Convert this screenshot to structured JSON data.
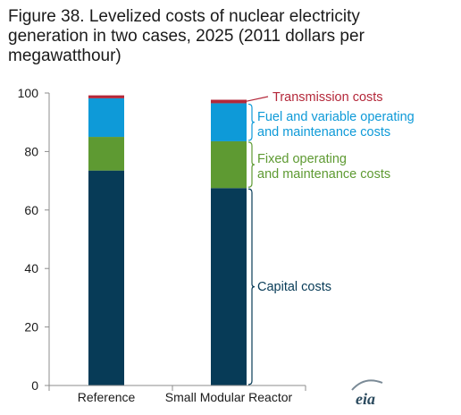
{
  "title_lines": [
    "Figure 38. Levelized costs of nuclear electricity",
    "generation in two cases, 2025 (2011 dollars per",
    "megawatthour)"
  ],
  "logo_text": "eia",
  "colors": {
    "capital": "#073b57",
    "fixed_om": "#5e9a32",
    "fuel_vom": "#0e9ad8",
    "transmission": "#b4283a",
    "axis": "#8c8c8c"
  },
  "chart_data": {
    "type": "bar",
    "stacked": true,
    "categories": [
      "Reference",
      "Small Modular Reactor"
    ],
    "series": [
      {
        "name": "Capital costs",
        "color": "#073b57",
        "values": [
          73.5,
          67.5
        ]
      },
      {
        "name": "Fixed operating and maintenance costs",
        "color": "#5e9a32",
        "values": [
          11.5,
          16.0
        ]
      },
      {
        "name": "Fuel and variable operating and maintenance costs",
        "color": "#0e9ad8",
        "values": [
          13.2,
          13.0
        ]
      },
      {
        "name": "Transmission costs",
        "color": "#b4283a",
        "values": [
          1.0,
          1.2
        ]
      }
    ],
    "yticks": [
      "0",
      "20",
      "40",
      "60",
      "80",
      "100"
    ],
    "ylim": [
      0,
      100
    ],
    "grid": false,
    "legend": "annotations right of second bar",
    "annotations": {
      "transmission": [
        "Transmission costs"
      ],
      "fuel": [
        "Fuel and variable operating",
        "and maintenance costs"
      ],
      "fixed": [
        "Fixed operating",
        "and maintenance costs"
      ],
      "capital": [
        "Capital costs"
      ]
    }
  }
}
